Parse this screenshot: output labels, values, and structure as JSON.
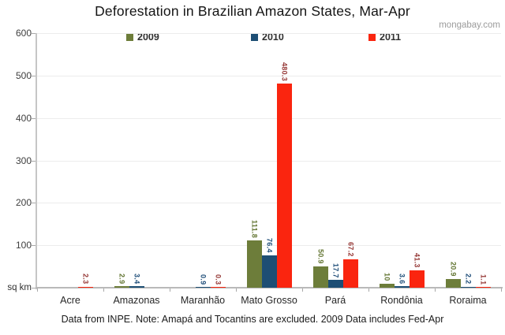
{
  "header": {
    "title": "Deforestation in Brazilian Amazon States, Mar-Apr",
    "watermark": "mongabay.com"
  },
  "caption": "Data from INPE. Note: Amapá and Tocantins are excluded. 2009 Data includes Fed-Apr",
  "chart_data": {
    "type": "bar",
    "title": "Deforestation in Brazilian Amazon States, Mar-Apr",
    "unit_label": "sq km",
    "categories": [
      "Acre",
      "Amazonas",
      "Maranhão",
      "Mato Grosso",
      "Pará",
      "Rondônia",
      "Roraima"
    ],
    "series": [
      {
        "name": "2009",
        "color": "#6d7d3a",
        "label_color": "#627431",
        "values": [
          null,
          2.9,
          null,
          111.8,
          50.9,
          10,
          20.9
        ]
      },
      {
        "name": "2010",
        "color": "#1d4e74",
        "label_color": "#1f4e79",
        "values": [
          null,
          3.4,
          0.9,
          76.4,
          17.7,
          3.6,
          2.2
        ]
      },
      {
        "name": "2011",
        "color": "#fa250f",
        "label_color": "#953735",
        "values": [
          2.3,
          null,
          0.3,
          480.3,
          67.2,
          41.3,
          1.1
        ]
      }
    ],
    "ylim": [
      0,
      600
    ],
    "y_ticks": [
      600,
      500,
      400,
      300,
      200,
      100
    ],
    "grid": true,
    "legend_position": "top",
    "xlabel": "",
    "ylabel": "sq km"
  }
}
